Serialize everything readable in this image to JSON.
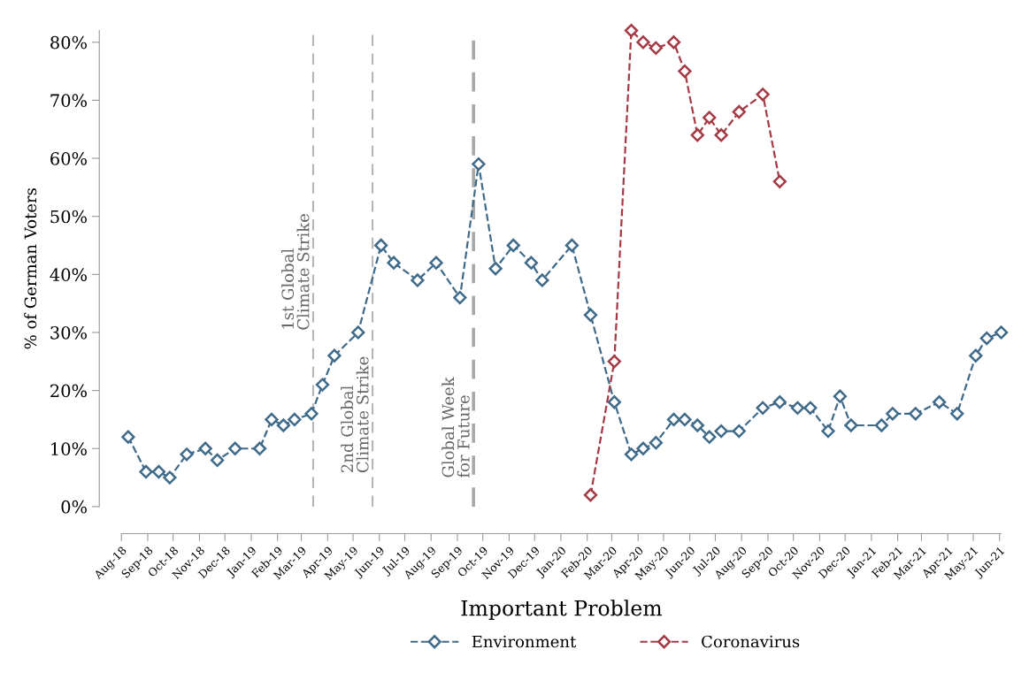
{
  "chart_data": {
    "type": "line",
    "xlabel": "Important Problem",
    "ylabel": "% of German Voters",
    "series": [
      {
        "name": "Environment",
        "color": "#3f6a8a",
        "x": [
          "2018-08-09",
          "2018-08-30",
          "2018-09-14",
          "2018-09-27",
          "2018-10-17",
          "2018-11-08",
          "2018-11-22",
          "2018-12-13",
          "2019-01-11",
          "2019-01-25",
          "2019-02-08",
          "2019-02-21",
          "2019-03-13",
          "2019-03-26",
          "2019-04-09",
          "2019-05-07",
          "2019-06-03",
          "2019-06-18",
          "2019-07-16",
          "2019-08-07",
          "2019-09-04",
          "2019-09-26",
          "2019-10-16",
          "2019-11-06",
          "2019-11-27",
          "2019-12-10",
          "2020-01-14",
          "2020-02-05",
          "2020-03-04",
          "2020-03-24",
          "2020-04-07",
          "2020-04-22",
          "2020-05-13",
          "2020-05-26",
          "2020-06-10",
          "2020-06-24",
          "2020-07-08",
          "2020-07-29",
          "2020-08-26",
          "2020-09-15",
          "2020-10-06",
          "2020-10-21",
          "2020-11-11",
          "2020-11-25",
          "2020-12-08",
          "2021-01-13",
          "2021-01-26",
          "2021-02-22",
          "2021-03-22",
          "2021-04-12",
          "2021-05-04",
          "2021-05-17",
          "2021-06-03"
        ],
        "values": [
          12,
          6,
          6,
          5,
          9,
          10,
          8,
          10,
          10,
          15,
          14,
          15,
          16,
          21,
          26,
          30,
          45,
          42,
          39,
          42,
          36,
          59,
          41,
          45,
          42,
          39,
          45,
          33,
          18,
          9,
          10,
          11,
          15,
          15,
          14,
          12,
          13,
          13,
          17,
          18,
          17,
          17,
          13,
          19,
          14,
          14,
          16,
          16,
          18,
          16,
          26,
          29,
          30
        ]
      },
      {
        "name": "Coronavirus",
        "color": "#a33a45",
        "x": [
          "2020-02-05",
          "2020-03-04",
          "2020-03-24",
          "2020-04-07",
          "2020-04-22",
          "2020-05-13",
          "2020-05-26",
          "2020-06-10",
          "2020-06-24",
          "2020-07-08",
          "2020-07-29",
          "2020-08-26",
          "2020-09-15"
        ],
        "values": [
          2,
          25,
          82,
          80,
          79,
          80,
          75,
          64,
          67,
          64,
          68,
          71,
          56
        ]
      }
    ],
    "xlim": [
      "2018-08-01",
      "2021-06-03"
    ],
    "xticks": [
      {
        "value": "2018-08-01",
        "label": "Aug-18"
      },
      {
        "value": "2018-09-01",
        "label": "Sep-18"
      },
      {
        "value": "2018-10-01",
        "label": "Oct-18"
      },
      {
        "value": "2018-11-01",
        "label": "Nov-18"
      },
      {
        "value": "2018-12-01",
        "label": "Dec-18"
      },
      {
        "value": "2019-01-01",
        "label": "Jan-19"
      },
      {
        "value": "2019-02-01",
        "label": "Feb-19"
      },
      {
        "value": "2019-03-01",
        "label": "Mar-19"
      },
      {
        "value": "2019-04-01",
        "label": "Apr-19"
      },
      {
        "value": "2019-05-01",
        "label": "May-19"
      },
      {
        "value": "2019-06-01",
        "label": "Jun-19"
      },
      {
        "value": "2019-07-01",
        "label": "Jul-19"
      },
      {
        "value": "2019-08-01",
        "label": "Aug-19"
      },
      {
        "value": "2019-09-01",
        "label": "Sep-19"
      },
      {
        "value": "2019-10-01",
        "label": "Oct-19"
      },
      {
        "value": "2019-11-01",
        "label": "Nov-19"
      },
      {
        "value": "2019-12-01",
        "label": "Dec-19"
      },
      {
        "value": "2020-01-01",
        "label": "Jan-20"
      },
      {
        "value": "2020-02-01",
        "label": "Feb-20"
      },
      {
        "value": "2020-03-01",
        "label": "Mar-20"
      },
      {
        "value": "2020-04-01",
        "label": "Apr-20"
      },
      {
        "value": "2020-05-01",
        "label": "May-20"
      },
      {
        "value": "2020-06-01",
        "label": "Jun-20"
      },
      {
        "value": "2020-07-01",
        "label": "Jul-20"
      },
      {
        "value": "2020-08-01",
        "label": "Aug-20"
      },
      {
        "value": "2020-09-01",
        "label": "Sep-20"
      },
      {
        "value": "2020-10-01",
        "label": "Oct-20"
      },
      {
        "value": "2020-11-01",
        "label": "Nov-20"
      },
      {
        "value": "2020-12-01",
        "label": "Dec-20"
      },
      {
        "value": "2021-01-01",
        "label": "Jan-21"
      },
      {
        "value": "2021-02-01",
        "label": "Feb-21"
      },
      {
        "value": "2021-03-01",
        "label": "Mar-21"
      },
      {
        "value": "2021-04-01",
        "label": "Apr-21"
      },
      {
        "value": "2021-05-01",
        "label": "May-21"
      },
      {
        "value": "2021-06-01",
        "label": "Jun-21"
      }
    ],
    "ylim": [
      0,
      82
    ],
    "yticks": [
      {
        "value": 0,
        "label": "0%"
      },
      {
        "value": 10,
        "label": "10%"
      },
      {
        "value": 20,
        "label": "20%"
      },
      {
        "value": 30,
        "label": "30%"
      },
      {
        "value": 40,
        "label": "40%"
      },
      {
        "value": 50,
        "label": "50%"
      },
      {
        "value": 60,
        "label": "60%"
      },
      {
        "value": 70,
        "label": "70%"
      },
      {
        "value": 80,
        "label": "80%"
      }
    ],
    "ref_lines": [
      {
        "axis": "x",
        "value": "2019-03-15",
        "label": "1st Global\nClimate Strike",
        "color": "#b5b5b5",
        "line_style": "dashed"
      },
      {
        "axis": "x",
        "value": "2019-05-24",
        "label": "2nd Global\nClimate Strike",
        "color": "#b5b5b5",
        "line_style": "dashed"
      },
      {
        "axis": "x",
        "value": "2019-09-20",
        "label": "Global Week\nfor Future",
        "color": "#a8a8a8",
        "line_style": "dashed"
      }
    ],
    "marker": "diamond",
    "line_style": "dashed",
    "grid": false,
    "legend": "bottom"
  }
}
